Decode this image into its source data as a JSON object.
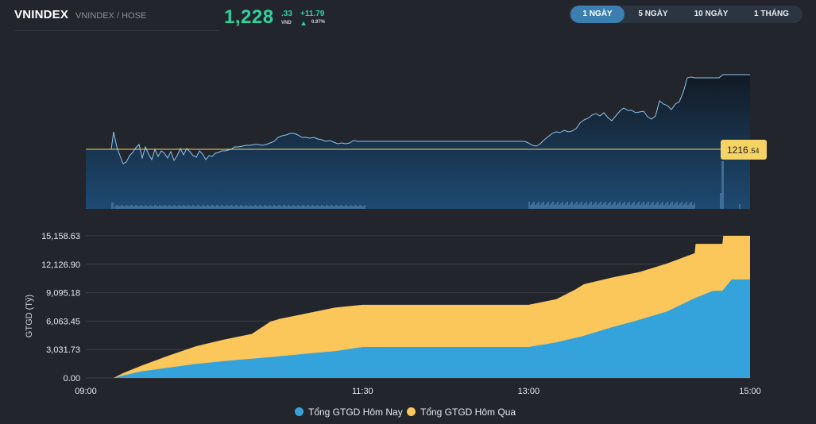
{
  "header": {
    "index_name": "VNINDEX",
    "index_sub": "VNINDEX / HOSE",
    "price_main": "1,228",
    "price_decimal": ".33",
    "price_unit": "VND",
    "change_value": "+11.79",
    "change_percent": "0.97%",
    "up_color": "#2ed39a"
  },
  "tabs": [
    {
      "label": "1 NGÀY",
      "active": true
    },
    {
      "label": "5 NGÀY",
      "active": false
    },
    {
      "label": "10 NGÀY",
      "active": false
    },
    {
      "label": "1 THÁNG",
      "active": false
    }
  ],
  "price_chart": {
    "reference_label_int": "1216",
    "reference_label_dec": ".54",
    "reference_value": 1216.54,
    "line_color": "#8ec6ee",
    "reference_color": "#f6d365"
  },
  "chart_data": {
    "type": "area",
    "ylabel": "GTGD (Tỷ)",
    "y_ticks": [
      "0.00",
      "3,031.73",
      "6,063.45",
      "9,095.18",
      "12,126.90",
      "15,158.63"
    ],
    "ylim": [
      0,
      15158.63
    ],
    "x_ticks": [
      "09:00",
      "11:30",
      "13:00",
      "15:00"
    ],
    "x_tick_minutes": [
      0,
      150,
      240,
      360
    ],
    "series": [
      {
        "name": "Tổng GTGD Hôm Nay",
        "color": "#34a3dc",
        "x": [
          0,
          15,
          20,
          30,
          45,
          60,
          75,
          90,
          105,
          120,
          135,
          150,
          165,
          180,
          195,
          210,
          225,
          240,
          255,
          270,
          285,
          300,
          315,
          330,
          340,
          345,
          350,
          355,
          360
        ],
        "values": [
          0,
          0,
          250,
          700,
          1100,
          1500,
          1800,
          2050,
          2300,
          2600,
          2850,
          3300,
          3300,
          3300,
          3300,
          3300,
          3300,
          3300,
          3800,
          4500,
          5400,
          6200,
          7100,
          8500,
          9300,
          9300,
          10500,
          10500,
          10500
        ]
      },
      {
        "name": "Tổng GTGD Hôm Qua",
        "color": "#fbc65a",
        "x": [
          0,
          15,
          20,
          30,
          45,
          60,
          75,
          90,
          100,
          105,
          120,
          135,
          150,
          165,
          180,
          195,
          210,
          225,
          240,
          255,
          265,
          270,
          285,
          300,
          315,
          330,
          330.5,
          345,
          345.5,
          350,
          360
        ],
        "values": [
          0,
          0,
          500,
          1300,
          2400,
          3400,
          4100,
          4700,
          6000,
          6300,
          6900,
          7500,
          7800,
          7800,
          7800,
          7800,
          7800,
          7800,
          7800,
          8400,
          9400,
          10000,
          10700,
          11300,
          12200,
          13300,
          14300,
          14300,
          15158.63,
          15158.63,
          15158.63
        ]
      }
    ]
  },
  "legend": [
    {
      "label": "Tổng GTGD Hôm Nay",
      "color": "#34a3dc"
    },
    {
      "label": "Tổng GTGD Hôm Qua",
      "color": "#fbc65a"
    }
  ]
}
